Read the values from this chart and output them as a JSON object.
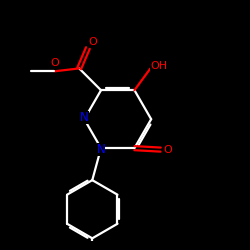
{
  "background": "#000000",
  "bond_color": "#ffffff",
  "atom_colors": {
    "O": "#ff0000",
    "N": "#0000ff",
    "C": "#ffffff"
  },
  "figsize": [
    2.5,
    2.5
  ],
  "dpi": 100
}
